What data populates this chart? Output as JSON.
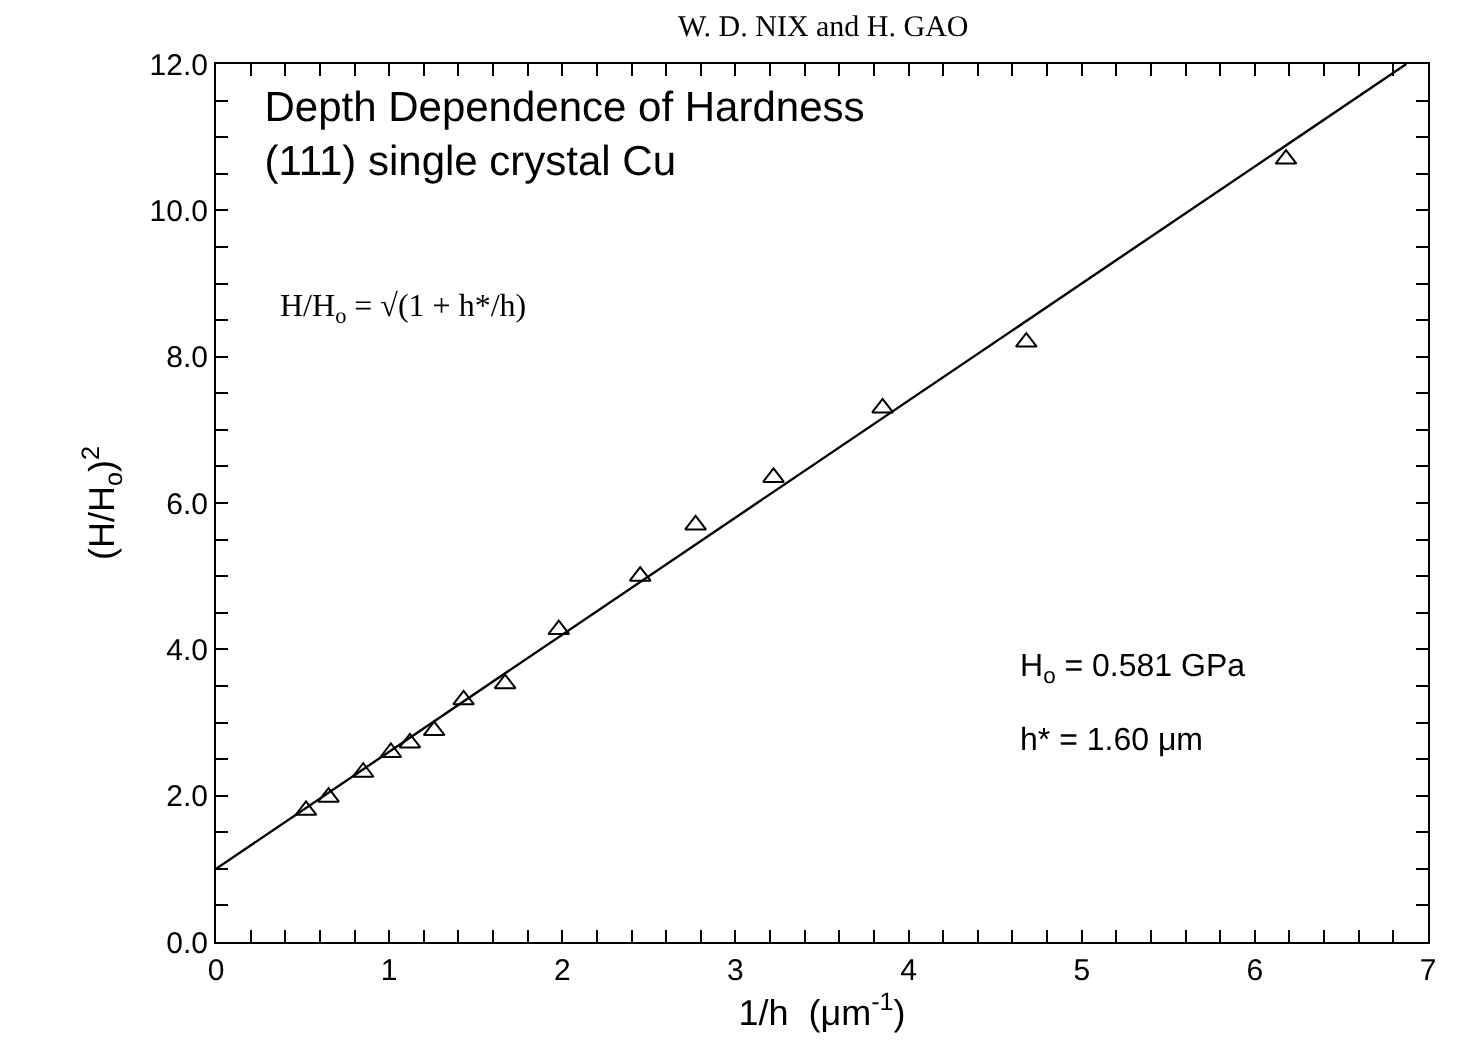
{
  "chart_data": {
    "type": "scatter",
    "title": "Depth Dependence of Hardness\n(111) single crystal Cu",
    "xlabel": "1/h  (μm$^{-1}$)",
    "ylabel": "(H/H$_{o}$)$^{2}$",
    "annotations": [
      "W. D. NIX and H. GAO",
      "H/H$_{o}$ = √(1 + h*/h)",
      "H$_{o}$ = 0.581 GPa",
      "h* = 1.60 μm"
    ],
    "grid": false,
    "legend": false,
    "xlim": [
      0,
      7
    ],
    "ylim": [
      0,
      12
    ],
    "xticks": [
      0,
      {
        "value": 0.2,
        "label": null
      },
      {
        "value": 0.4,
        "label": null
      },
      {
        "value": 0.6,
        "label": null
      },
      {
        "value": 0.8,
        "label": null
      },
      1,
      {
        "value": 1.2,
        "label": null
      },
      {
        "value": 1.4,
        "label": null
      },
      {
        "value": 1.6,
        "label": null
      },
      {
        "value": 1.8,
        "label": null
      },
      2,
      {
        "value": 2.2,
        "label": null
      },
      {
        "value": 2.4,
        "label": null
      },
      {
        "value": 2.6,
        "label": null
      },
      {
        "value": 2.8,
        "label": null
      },
      3,
      {
        "value": 3.2,
        "label": null
      },
      {
        "value": 3.4,
        "label": null
      },
      {
        "value": 3.6,
        "label": null
      },
      {
        "value": 3.8,
        "label": null
      },
      4,
      {
        "value": 4.2,
        "label": null
      },
      {
        "value": 4.4,
        "label": null
      },
      {
        "value": 4.6,
        "label": null
      },
      {
        "value": 4.8,
        "label": null
      },
      5,
      {
        "value": 5.2,
        "label": null
      },
      {
        "value": 5.4,
        "label": null
      },
      {
        "value": 5.6,
        "label": null
      },
      {
        "value": 5.8,
        "label": null
      },
      6,
      {
        "value": 6.2,
        "label": null
      },
      {
        "value": 6.4,
        "label": null
      },
      {
        "value": 6.6,
        "label": null
      },
      {
        "value": 6.8,
        "label": null
      },
      7
    ],
    "yticks": [
      {
        "value": 0,
        "label": "0.0"
      },
      {
        "value": 0.5,
        "label": null
      },
      {
        "value": 1,
        "label": null
      },
      {
        "value": 1.5,
        "label": null
      },
      {
        "value": 2,
        "label": "2.0"
      },
      {
        "value": 2.5,
        "label": null
      },
      {
        "value": 3,
        "label": null
      },
      {
        "value": 3.5,
        "label": null
      },
      {
        "value": 4,
        "label": "4.0"
      },
      {
        "value": 4.5,
        "label": null
      },
      {
        "value": 5,
        "label": null
      },
      {
        "value": 5.5,
        "label": null
      },
      {
        "value": 6,
        "label": "6.0"
      },
      {
        "value": 6.5,
        "label": null
      },
      {
        "value": 7,
        "label": null
      },
      {
        "value": 7.5,
        "label": null
      },
      {
        "value": 8,
        "label": "8.0"
      },
      {
        "value": 8.5,
        "label": null
      },
      {
        "value": 9,
        "label": null
      },
      {
        "value": 9.5,
        "label": null
      },
      {
        "value": 10,
        "label": "10.0"
      },
      {
        "value": 10.5,
        "label": null
      },
      {
        "value": 11,
        "label": null
      },
      {
        "value": 11.5,
        "label": null
      },
      {
        "value": 12,
        "label": "12.0"
      }
    ],
    "series": [
      {
        "marker": "triangle",
        "color": "#000000",
        "x": [
          0.52,
          0.65,
          0.85,
          1.01,
          1.12,
          1.26,
          1.43,
          1.67,
          1.98,
          2.45,
          2.77,
          3.22,
          3.85,
          4.68,
          6.18
        ],
        "values": [
          1.8,
          1.98,
          2.32,
          2.59,
          2.72,
          2.89,
          3.31,
          3.53,
          4.27,
          5.0,
          5.7,
          6.35,
          7.3,
          8.2,
          10.7
        ]
      },
      {
        "type": "line",
        "color": "#000000",
        "x": [
          0,
          6.875
        ],
        "values": [
          1,
          12
        ]
      }
    ]
  }
}
